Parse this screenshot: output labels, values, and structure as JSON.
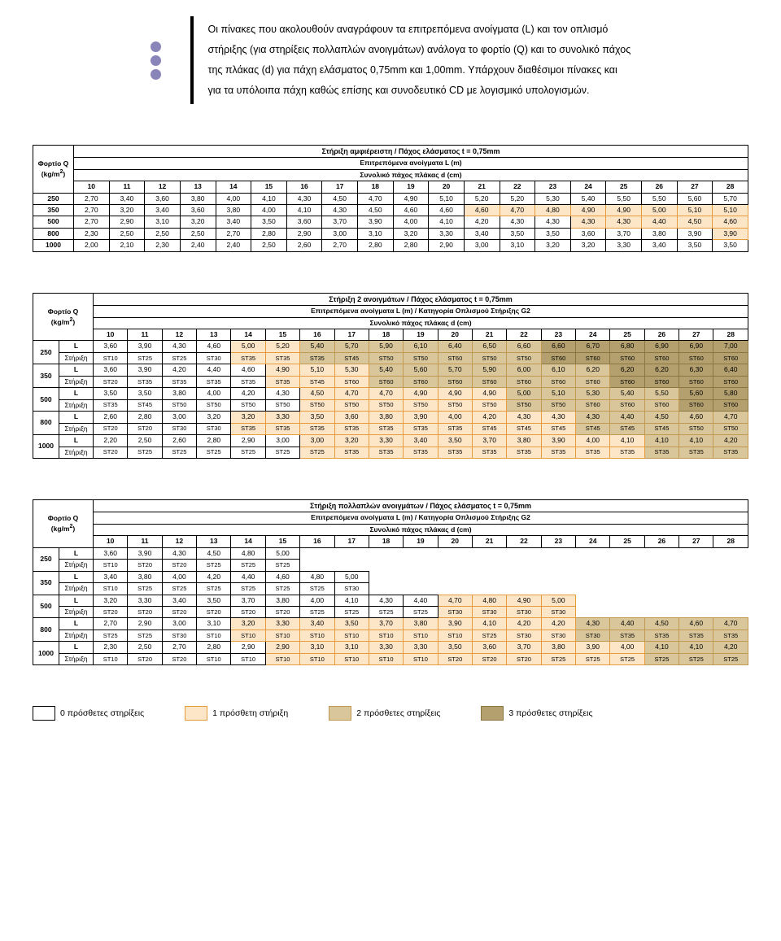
{
  "intro": {
    "text": "Οι πίνακες που ακολουθούν αναγράφουν τα επιτρεπόμενα ανοίγματα (L) και τον οπλισμό στήριξης (για στηρίξεις πολλαπλών ανοιγμάτων) ανάλογα το φορτίο (Q) και το συνολικό πάχος της πλάκας (d) για πάχη ελάσματος 0,75mm και 1,00mm. Υπάρχουν διαθέσιμοι πίνακες και για τα υπόλοιπα πάχη καθώς επίσης και συνοδευτικό CD με λογισμικό υπολογισμών.",
    "dot_colors": [
      "#8a85b8",
      "#8a85b8",
      "#8a85b8"
    ]
  },
  "cols": [
    "10",
    "11",
    "12",
    "13",
    "14",
    "15",
    "16",
    "17",
    "18",
    "19",
    "20",
    "21",
    "22",
    "23",
    "24",
    "25",
    "26",
    "27",
    "28"
  ],
  "load_label": "Φορτίο Q\n(kg/m²)",
  "sub1": "Επιτρεπόμενα ανοίγματα L (m)",
  "sub2": "Συνολικό πάχος πλάκας d (cm)",
  "sub1b": "Επιτρεπόμενα ανοίγματα L (m) / Κατηγορία Οπλισμού Στήριξης G2",
  "row_L": "L",
  "row_S": "Στήριξη",
  "table1": {
    "title": "Στήριξη αμφιέρειστη / Πάχος ελάσματος t = 0,75mm",
    "loads": [
      "250",
      "350",
      "500",
      "800",
      "1000"
    ],
    "vals": [
      [
        "2,70",
        "3,40",
        "3,60",
        "3,80",
        "4,00",
        "4,10",
        "4,30",
        "4,50",
        "4,70",
        "4,90",
        "5,10",
        "5,20",
        "5,20",
        "5,30",
        "5,40",
        "5,50",
        "5,50",
        "5,60",
        "5,70"
      ],
      [
        "2,70",
        "3,20",
        "3,40",
        "3,60",
        "3,80",
        "4,00",
        "4,10",
        "4,30",
        "4,50",
        "4,60",
        "4,60",
        "4,60",
        "4,70",
        "4,80",
        "4,90",
        "4,90",
        "5,00",
        "5,10",
        "5,10"
      ],
      [
        "2,70",
        "2,90",
        "3,10",
        "3,20",
        "3,40",
        "3,50",
        "3,60",
        "3,70",
        "3,90",
        "4,00",
        "4,10",
        "4,20",
        "4,30",
        "4,30",
        "4,30",
        "4,30",
        "4,40",
        "4,50",
        "4,60"
      ],
      [
        "2,30",
        "2,50",
        "2,50",
        "2,50",
        "2,70",
        "2,80",
        "2,90",
        "3,00",
        "3,10",
        "3,20",
        "3,30",
        "3,40",
        "3,50",
        "3,50",
        "3,60",
        "3,70",
        "3,80",
        "3,90",
        "3,90"
      ],
      [
        "2,00",
        "2,10",
        "2,30",
        "2,40",
        "2,40",
        "2,50",
        "2,60",
        "2,70",
        "2,80",
        "2,80",
        "2,90",
        "3,00",
        "3,10",
        "3,20",
        "3,20",
        "3,30",
        "3,40",
        "3,50",
        "3,50"
      ]
    ],
    "shade": [
      [
        0,
        0,
        0,
        0,
        0,
        0,
        0,
        0,
        0,
        0,
        0,
        0,
        0,
        0,
        0,
        0,
        0,
        0,
        0
      ],
      [
        0,
        0,
        0,
        0,
        0,
        0,
        0,
        0,
        0,
        0,
        0,
        1,
        1,
        1,
        1,
        1,
        1,
        1,
        1
      ],
      [
        0,
        0,
        0,
        0,
        0,
        0,
        0,
        0,
        0,
        0,
        0,
        0,
        0,
        0,
        1,
        1,
        1,
        1,
        1
      ],
      [
        0,
        0,
        0,
        0,
        0,
        0,
        0,
        0,
        0,
        0,
        0,
        0,
        0,
        0,
        0,
        0,
        0,
        0,
        1
      ],
      [
        0,
        0,
        0,
        0,
        0,
        0,
        0,
        0,
        0,
        0,
        0,
        0,
        0,
        0,
        0,
        0,
        0,
        0,
        0
      ]
    ]
  },
  "table2": {
    "title": "Στήριξη 2 ανοιγμάτων / Πάχος ελάσματος t = 0,75mm",
    "loads": [
      "250",
      "350",
      "500",
      "800",
      "1000"
    ],
    "L": [
      [
        "3,60",
        "3,90",
        "4,30",
        "4,60",
        "5,00",
        "5,20",
        "5,40",
        "5,70",
        "5,90",
        "6,10",
        "6,40",
        "6,50",
        "6,60",
        "6,60",
        "6,70",
        "6,80",
        "6,90",
        "6,90",
        "7,00"
      ],
      [
        "3,60",
        "3,90",
        "4,20",
        "4,40",
        "4,60",
        "4,90",
        "5,10",
        "5,30",
        "5,40",
        "5,60",
        "5,70",
        "5,90",
        "6,00",
        "6,10",
        "6,20",
        "6,20",
        "6,20",
        "6,30",
        "6,40"
      ],
      [
        "3,50",
        "3,50",
        "3,80",
        "4,00",
        "4,20",
        "4,30",
        "4,50",
        "4,70",
        "4,70",
        "4,90",
        "4,90",
        "4,90",
        "5,00",
        "5,10",
        "5,30",
        "5,40",
        "5,50",
        "5,60",
        "5,80"
      ],
      [
        "2,60",
        "2,80",
        "3,00",
        "3,20",
        "3,20",
        "3,30",
        "3,50",
        "3,60",
        "3,80",
        "3,90",
        "4,00",
        "4,20",
        "4,30",
        "4,30",
        "4,30",
        "4,40",
        "4,50",
        "4,60",
        "4,70"
      ],
      [
        "2,20",
        "2,50",
        "2,60",
        "2,80",
        "2,90",
        "3,00",
        "3,00",
        "3,20",
        "3,30",
        "3,40",
        "3,50",
        "3,70",
        "3,80",
        "3,90",
        "4,00",
        "4,10",
        "4,10",
        "4,10",
        "4,20"
      ]
    ],
    "S": [
      [
        "ST10",
        "ST25",
        "ST25",
        "ST30",
        "ST35",
        "ST35",
        "ST35",
        "ST45",
        "ST50",
        "ST50",
        "ST60",
        "ST50",
        "ST50",
        "ST60",
        "ST60",
        "ST60",
        "ST60",
        "ST60",
        "ST60"
      ],
      [
        "ST20",
        "ST35",
        "ST35",
        "ST35",
        "ST35",
        "ST35",
        "ST45",
        "ST60",
        "ST60",
        "ST60",
        "ST60",
        "ST60",
        "ST60",
        "ST60",
        "ST60",
        "ST60",
        "ST60",
        "ST60",
        "ST60"
      ],
      [
        "ST35",
        "ST45",
        "ST50",
        "ST50",
        "ST50",
        "ST50",
        "ST50",
        "ST50",
        "ST50",
        "ST50",
        "ST50",
        "ST50",
        "ST50",
        "ST50",
        "ST60",
        "ST60",
        "ST60",
        "ST60",
        "ST60"
      ],
      [
        "ST20",
        "ST20",
        "ST30",
        "ST30",
        "ST35",
        "ST35",
        "ST35",
        "ST35",
        "ST35",
        "ST35",
        "ST35",
        "ST45",
        "ST45",
        "ST45",
        "ST45",
        "ST45",
        "ST45",
        "ST50",
        "ST50"
      ],
      [
        "ST20",
        "ST25",
        "ST25",
        "ST25",
        "ST25",
        "ST25",
        "ST25",
        "ST35",
        "ST35",
        "ST35",
        "ST35",
        "ST35",
        "ST35",
        "ST35",
        "ST35",
        "ST35",
        "ST35",
        "ST35",
        "ST35"
      ]
    ],
    "Lshade": [
      [
        0,
        0,
        0,
        0,
        1,
        1,
        2,
        2,
        2,
        2,
        2,
        2,
        2,
        3,
        3,
        3,
        3,
        3,
        3
      ],
      [
        0,
        0,
        0,
        0,
        0,
        1,
        1,
        1,
        2,
        2,
        2,
        2,
        2,
        2,
        2,
        3,
        3,
        3,
        3
      ],
      [
        0,
        0,
        0,
        0,
        0,
        0,
        1,
        1,
        1,
        1,
        1,
        1,
        2,
        2,
        2,
        2,
        2,
        3,
        3
      ],
      [
        0,
        0,
        0,
        0,
        1,
        1,
        1,
        1,
        1,
        1,
        1,
        1,
        1,
        1,
        2,
        2,
        2,
        2,
        2
      ],
      [
        0,
        0,
        0,
        0,
        0,
        0,
        1,
        1,
        1,
        1,
        1,
        1,
        1,
        1,
        1,
        1,
        2,
        2,
        2
      ]
    ],
    "Sshade": [
      [
        0,
        0,
        0,
        0,
        1,
        1,
        2,
        2,
        2,
        2,
        2,
        2,
        2,
        3,
        3,
        3,
        3,
        3,
        3
      ],
      [
        0,
        0,
        0,
        0,
        0,
        1,
        1,
        1,
        2,
        2,
        2,
        2,
        2,
        2,
        2,
        3,
        3,
        3,
        3
      ],
      [
        0,
        0,
        0,
        0,
        0,
        0,
        1,
        1,
        1,
        1,
        1,
        1,
        2,
        2,
        2,
        2,
        2,
        3,
        3
      ],
      [
        0,
        0,
        0,
        0,
        1,
        1,
        1,
        1,
        1,
        1,
        1,
        1,
        1,
        1,
        2,
        2,
        2,
        2,
        2
      ],
      [
        0,
        0,
        0,
        0,
        0,
        0,
        1,
        1,
        1,
        1,
        1,
        1,
        1,
        1,
        1,
        1,
        2,
        2,
        2
      ]
    ]
  },
  "table3": {
    "title": "Στήριξη πολλαπλών ανοιγμάτων / Πάχος ελάσματος t = 0,75mm",
    "loads": [
      "250",
      "350",
      "500",
      "800",
      "1000"
    ],
    "L": [
      [
        "3,60",
        "3,90",
        "4,30",
        "4,50",
        "4,80",
        "5,00",
        "",
        "",
        "",
        "",
        "",
        "",
        "",
        "",
        "",
        "",
        "",
        "",
        ""
      ],
      [
        "3,40",
        "3,80",
        "4,00",
        "4,20",
        "4,40",
        "4,60",
        "4,80",
        "5,00",
        "",
        "",
        "",
        "",
        "",
        "",
        "",
        "",
        "",
        "",
        ""
      ],
      [
        "3,20",
        "3,30",
        "3,40",
        "3,50",
        "3,70",
        "3,80",
        "4,00",
        "4,10",
        "4,30",
        "4,40",
        "4,70",
        "4,80",
        "4,90",
        "5,00",
        "",
        "",
        "",
        "",
        ""
      ],
      [
        "2,70",
        "2,90",
        "3,00",
        "3,10",
        "3,20",
        "3,30",
        "3,40",
        "3,50",
        "3,70",
        "3,80",
        "3,90",
        "4,10",
        "4,20",
        "4,20",
        "4,30",
        "4,40",
        "4,50",
        "4,60",
        "4,70"
      ],
      [
        "2,30",
        "2,50",
        "2,70",
        "2,80",
        "2,90",
        "2,90",
        "3,10",
        "3,10",
        "3,30",
        "3,30",
        "3,50",
        "3,60",
        "3,70",
        "3,80",
        "3,90",
        "4,00",
        "4,10",
        "4,10",
        "4,20"
      ]
    ],
    "S": [
      [
        "ST10",
        "ST20",
        "ST20",
        "ST25",
        "ST25",
        "ST25",
        "",
        "",
        "",
        "",
        "",
        "",
        "",
        "",
        "",
        "",
        "",
        "",
        ""
      ],
      [
        "ST10",
        "ST25",
        "ST25",
        "ST25",
        "ST25",
        "ST25",
        "ST25",
        "ST30",
        "",
        "",
        "",
        "",
        "",
        "",
        "",
        "",
        "",
        "",
        ""
      ],
      [
        "ST20",
        "ST20",
        "ST20",
        "ST20",
        "ST20",
        "ST20",
        "ST25",
        "ST25",
        "ST25",
        "ST25",
        "ST30",
        "ST30",
        "ST30",
        "ST30",
        "",
        "",
        "",
        "",
        ""
      ],
      [
        "ST25",
        "ST25",
        "ST30",
        "ST10",
        "ST10",
        "ST10",
        "ST10",
        "ST10",
        "ST10",
        "ST10",
        "ST10",
        "ST25",
        "ST30",
        "ST30",
        "ST30",
        "ST35",
        "ST35",
        "ST35",
        "ST35"
      ],
      [
        "ST10",
        "ST20",
        "ST20",
        "ST10",
        "ST10",
        "ST10",
        "ST10",
        "ST10",
        "ST10",
        "ST10",
        "ST20",
        "ST20",
        "ST20",
        "ST25",
        "ST25",
        "ST25",
        "ST25",
        "ST25",
        "ST25"
      ]
    ],
    "Lshade": [
      [
        0,
        0,
        0,
        0,
        0,
        0,
        -1,
        -1,
        -1,
        -1,
        -1,
        -1,
        -1,
        -1,
        -1,
        -1,
        -1,
        -1,
        -1
      ],
      [
        0,
        0,
        0,
        0,
        0,
        0,
        0,
        0,
        -1,
        -1,
        -1,
        -1,
        -1,
        -1,
        -1,
        -1,
        -1,
        -1,
        -1
      ],
      [
        0,
        0,
        0,
        0,
        0,
        0,
        0,
        0,
        0,
        0,
        1,
        1,
        1,
        1,
        -1,
        -1,
        -1,
        -1,
        -1
      ],
      [
        0,
        0,
        0,
        0,
        1,
        1,
        1,
        1,
        1,
        1,
        1,
        1,
        1,
        1,
        2,
        2,
        2,
        2,
        2
      ],
      [
        0,
        0,
        0,
        0,
        0,
        1,
        1,
        1,
        1,
        1,
        1,
        1,
        1,
        1,
        1,
        1,
        2,
        2,
        2
      ]
    ],
    "Sshade": [
      [
        0,
        0,
        0,
        0,
        0,
        0,
        -1,
        -1,
        -1,
        -1,
        -1,
        -1,
        -1,
        -1,
        -1,
        -1,
        -1,
        -1,
        -1
      ],
      [
        0,
        0,
        0,
        0,
        0,
        0,
        0,
        0,
        -1,
        -1,
        -1,
        -1,
        -1,
        -1,
        -1,
        -1,
        -1,
        -1,
        -1
      ],
      [
        0,
        0,
        0,
        0,
        0,
        0,
        0,
        0,
        0,
        0,
        1,
        1,
        1,
        1,
        -1,
        -1,
        -1,
        -1,
        -1
      ],
      [
        0,
        0,
        0,
        0,
        1,
        1,
        1,
        1,
        1,
        1,
        1,
        1,
        1,
        1,
        2,
        2,
        2,
        2,
        2
      ],
      [
        0,
        0,
        0,
        0,
        0,
        1,
        1,
        1,
        1,
        1,
        1,
        1,
        1,
        1,
        1,
        1,
        2,
        2,
        2
      ]
    ]
  },
  "legend": {
    "labels": [
      "0 πρόσθετες στηρίξεις",
      "1 πρόσθετη στήριξη",
      "2 πρόσθετες στηρίξεις",
      "3 πρόσθετες στηρίξεις"
    ]
  },
  "shade_colors": [
    "#ffffff",
    "#fde6c8",
    "#d9c79b",
    "#b3a06e"
  ],
  "shade_borders": [
    "#000000",
    "#e69b3c",
    "#c09850",
    "#8a7740"
  ]
}
